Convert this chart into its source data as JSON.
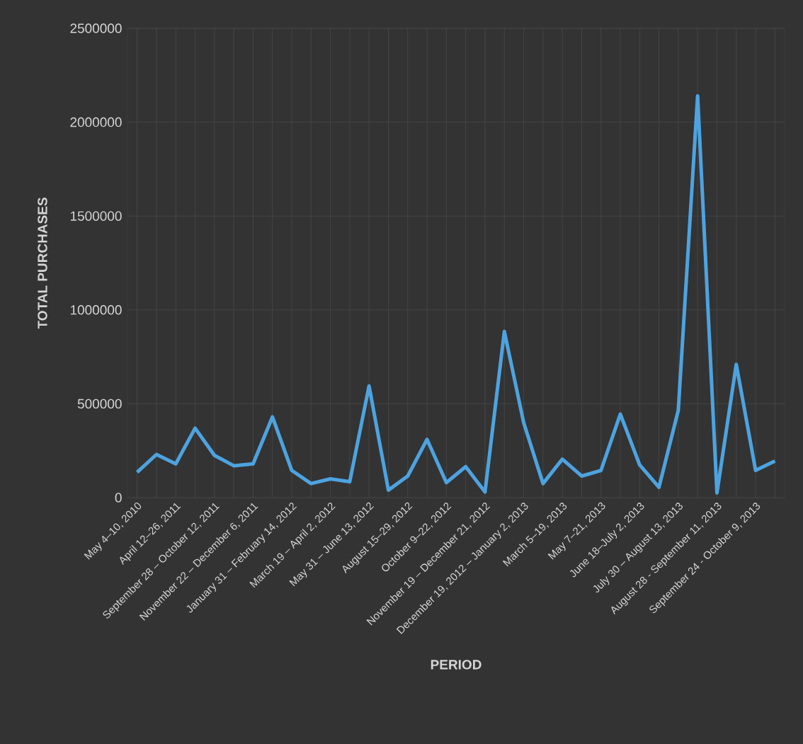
{
  "chart_data": {
    "type": "line",
    "xlabel": "PERIOD",
    "ylabel": "TOTAL PURCHASES",
    "categories": [
      "May 4–10, 2010",
      null,
      "April 12–26, 2011",
      null,
      "September 28 – October 12, 2011",
      null,
      "November 22 – December 6, 2011",
      null,
      "January 31 – February 14, 2012",
      null,
      "March 19 – April 2, 2012",
      null,
      "May 31 – June 13, 2012",
      null,
      "August 15–29, 2012",
      null,
      "October 9–22, 2012",
      null,
      "November 19 – December 21, 2012",
      null,
      "December 19, 2012 – January 2, 2013",
      null,
      "March 5–19, 2013",
      null,
      "May 7–21, 2013",
      null,
      "June 18–July 2, 2013",
      null,
      "July 30 – August 13, 2013",
      null,
      "August 28 - September 11, 2013",
      null,
      "September 24 - October 9, 2013",
      null
    ],
    "values": [
      135000,
      230000,
      180000,
      370000,
      225000,
      170000,
      180000,
      430000,
      145000,
      75000,
      100000,
      85000,
      595000,
      40000,
      115000,
      310000,
      80000,
      165000,
      30000,
      885000,
      400000,
      75000,
      205000,
      115000,
      145000,
      445000,
      175000,
      55000,
      465000,
      2140000,
      25000,
      710000,
      145000,
      195000
    ],
    "color": "#4da3e0",
    "ylim": [
      0,
      2500000
    ],
    "yticks": [
      0,
      500000,
      1000000,
      1500000,
      2000000,
      2500000
    ],
    "grid": true
  }
}
